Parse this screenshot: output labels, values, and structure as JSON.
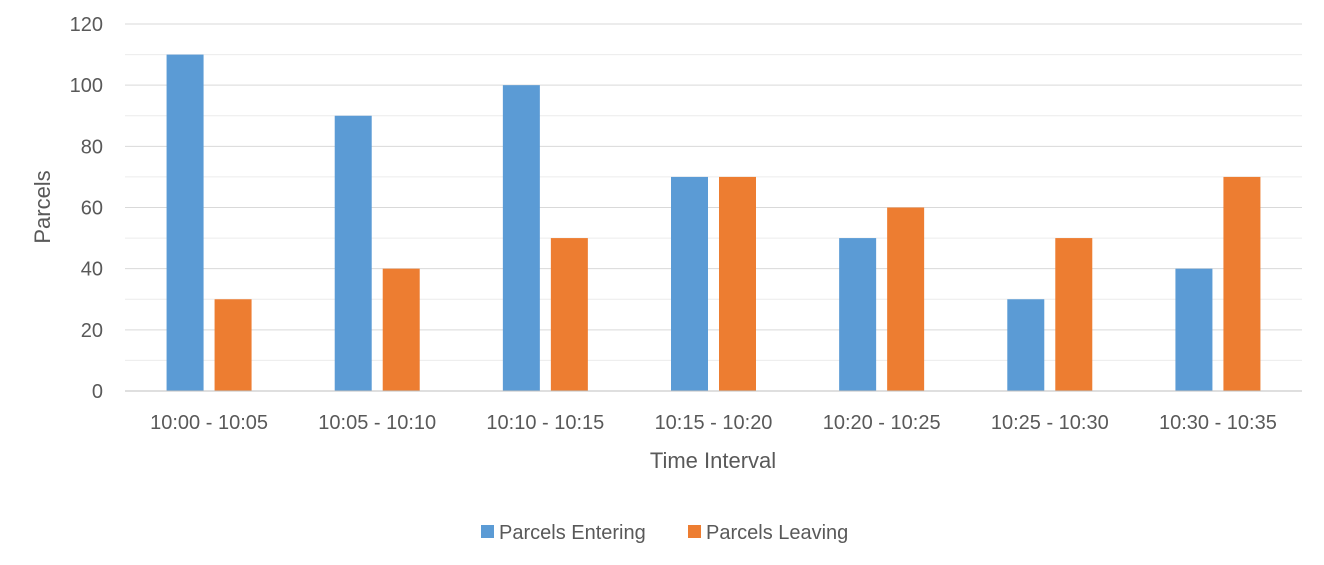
{
  "chart_data": {
    "type": "bar",
    "title": "",
    "xlabel": "Time Interval",
    "ylabel": "Parcels",
    "ylim": [
      0,
      120
    ],
    "y_ticks": [
      0,
      20,
      40,
      60,
      80,
      100,
      120
    ],
    "grid": true,
    "legend_position": "bottom",
    "categories": [
      "10:00 - 10:05",
      "10:05 - 10:10",
      "10:10 - 10:15",
      "10:15 - 10:20",
      "10:20 - 10:25",
      "10:25 - 10:30",
      "10:30 - 10:35"
    ],
    "series": [
      {
        "name": "Parcels Entering",
        "color": "#5B9BD5",
        "values": [
          110,
          90,
          100,
          70,
          50,
          30,
          40
        ]
      },
      {
        "name": "Parcels Leaving",
        "color": "#ED7D31",
        "values": [
          30,
          40,
          50,
          70,
          60,
          50,
          70
        ]
      }
    ]
  }
}
